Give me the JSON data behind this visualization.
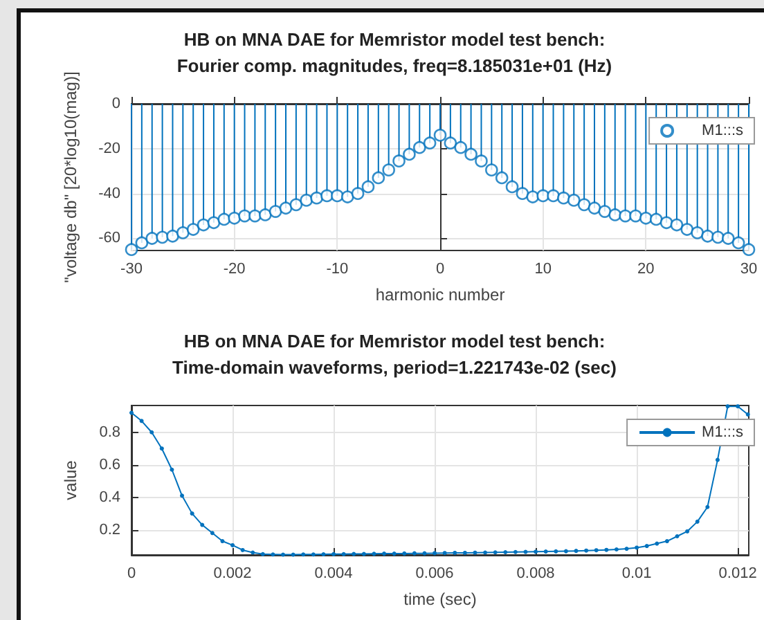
{
  "chart_data": [
    {
      "type": "lollipop",
      "title": "HB on MNA DAE for Memristor model test bench:",
      "subtitle": "Fourier comp. magnitudes, freq=8.185031e+01 (Hz)",
      "xlabel": "harmonic number",
      "ylabel": "\"voltage db\" [20*log10(mag)]",
      "x": [
        -30,
        -29,
        -28,
        -27,
        -26,
        -25,
        -24,
        -23,
        -22,
        -21,
        -20,
        -19,
        -18,
        -17,
        -16,
        -15,
        -14,
        -13,
        -12,
        -11,
        -10,
        -9,
        -8,
        -7,
        -6,
        -5,
        -4,
        -3,
        -2,
        -1,
        0,
        1,
        2,
        3,
        4,
        5,
        6,
        7,
        8,
        9,
        10,
        11,
        12,
        13,
        14,
        15,
        16,
        17,
        18,
        19,
        20,
        21,
        22,
        23,
        24,
        25,
        26,
        27,
        28,
        29,
        30
      ],
      "series": [
        {
          "name": "M1:::s",
          "color": "#0072bd",
          "values": [
            -65,
            -62,
            -60,
            -59.5,
            -59,
            -57.5,
            -56,
            -54,
            -53,
            -51.5,
            -51,
            -50,
            -50,
            -49.5,
            -48,
            -46.5,
            -45,
            -43,
            -42,
            -41,
            -41,
            -41.5,
            -40,
            -37,
            -33,
            -29.5,
            -25.5,
            -22.5,
            -19.5,
            -17.5,
            -14,
            -17.5,
            -19.5,
            -22.5,
            -25.5,
            -29.5,
            -33,
            -37,
            -40,
            -41.5,
            -41,
            -41,
            -42,
            -43,
            -45,
            -46.5,
            -48,
            -49.5,
            -50,
            -50,
            -51,
            -51.5,
            -53,
            -54,
            -56,
            -57.5,
            -59,
            -59.5,
            -60,
            -62,
            -65
          ]
        }
      ],
      "xlim": [
        -30,
        30
      ],
      "xticks": [
        -30,
        -20,
        -10,
        0,
        10,
        20,
        30
      ],
      "ylim": [
        -65.4,
        0
      ],
      "yticks": [
        -60,
        -40,
        -20,
        0
      ],
      "grid": true,
      "legend": "top right",
      "marker": "circle"
    },
    {
      "type": "line",
      "title": "HB on MNA DAE for Memristor model test bench:",
      "subtitle": "Time-domain waveforms, period=1.221743e-02 (sec)",
      "xlabel": "time (sec)",
      "ylabel": "value",
      "x": [
        0,
        0.0002,
        0.0004,
        0.0006,
        0.0008,
        0.001,
        0.0012,
        0.0014,
        0.0016,
        0.0018,
        0.002,
        0.0022,
        0.0024,
        0.0026,
        0.0028,
        0.003,
        0.0032,
        0.0034,
        0.0036,
        0.0038,
        0.004,
        0.0042,
        0.0044,
        0.0046,
        0.0048,
        0.005,
        0.0052,
        0.0054,
        0.0056,
        0.0058,
        0.006,
        0.0062,
        0.0064,
        0.0066,
        0.0068,
        0.007,
        0.0072,
        0.0074,
        0.0076,
        0.0078,
        0.008,
        0.0082,
        0.0084,
        0.0086,
        0.0088,
        0.009,
        0.0092,
        0.0094,
        0.0096,
        0.0098,
        0.01,
        0.0102,
        0.0104,
        0.0106,
        0.0108,
        0.011,
        0.0112,
        0.0114,
        0.0116,
        0.0118,
        0.012,
        0.0122
      ],
      "series": [
        {
          "name": "M1:::s",
          "color": "#0072bd",
          "values": [
            0.92,
            0.87,
            0.8,
            0.7,
            0.57,
            0.41,
            0.3,
            0.23,
            0.18,
            0.13,
            0.105,
            0.075,
            0.06,
            0.05,
            0.048,
            0.047,
            0.047,
            0.048,
            0.048,
            0.049,
            0.05,
            0.05,
            0.051,
            0.051,
            0.052,
            0.053,
            0.053,
            0.054,
            0.055,
            0.055,
            0.056,
            0.057,
            0.058,
            0.058,
            0.059,
            0.06,
            0.061,
            0.062,
            0.063,
            0.064,
            0.065,
            0.066,
            0.067,
            0.068,
            0.07,
            0.072,
            0.074,
            0.076,
            0.079,
            0.083,
            0.09,
            0.1,
            0.115,
            0.13,
            0.16,
            0.19,
            0.25,
            0.34,
            0.63,
            0.96,
            0.96,
            0.91
          ]
        }
      ],
      "xlim": [
        0,
        0.0122174
      ],
      "xticks": [
        0,
        0.002,
        0.004,
        0.006,
        0.008,
        0.01,
        0.012
      ],
      "ylim": [
        0.045,
        0.965
      ],
      "yticks": [
        0.2,
        0.4,
        0.6,
        0.8
      ],
      "grid": true,
      "legend": "top right",
      "marker": "circle"
    }
  ]
}
